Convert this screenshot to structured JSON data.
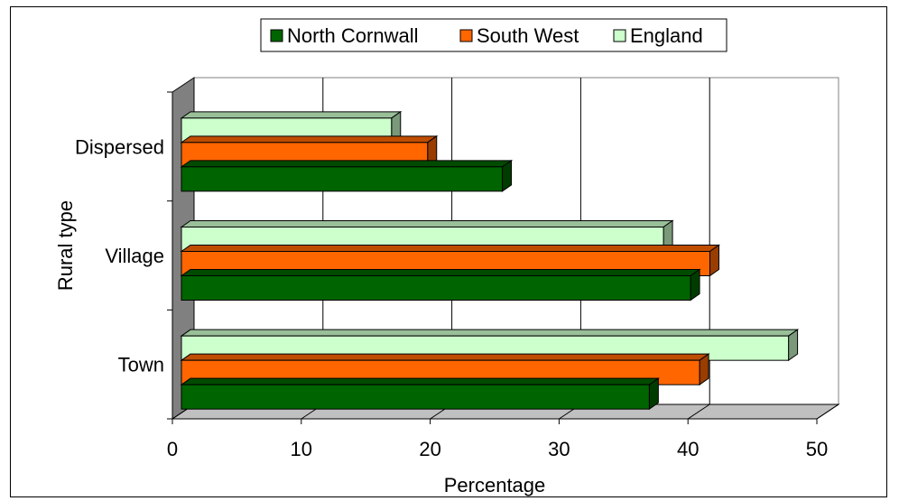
{
  "chart_data": {
    "type": "bar",
    "orientation": "horizontal",
    "three_d": true,
    "categories": [
      "Town",
      "Village",
      "Dispersed"
    ],
    "series": [
      {
        "name": "North Cornwall",
        "values": [
          36.3,
          39.5,
          24.9
        ],
        "color": "#006400"
      },
      {
        "name": "South West",
        "values": [
          40.2,
          41.0,
          19.1
        ],
        "color": "#ff6600"
      },
      {
        "name": "England",
        "values": [
          47.1,
          37.4,
          16.3
        ],
        "color": "#ccffcc"
      }
    ],
    "xlabel": "Percentage",
    "ylabel": "Rural type",
    "xlim": [
      0,
      50
    ],
    "xticks": [
      "0",
      "10",
      "20",
      "30",
      "40",
      "50"
    ],
    "grid": "vertical",
    "legend": "top-center"
  }
}
